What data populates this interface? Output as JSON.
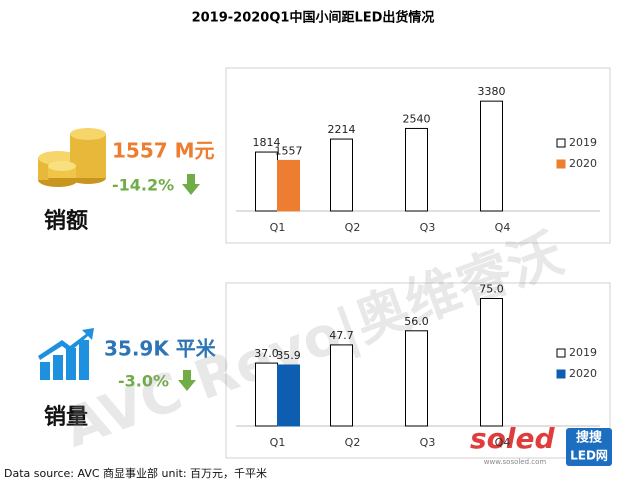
{
  "title": "2019-2020Q1中国小间距LED出货情况",
  "kpis": [
    {
      "value": "1557 M元",
      "change": "-14.2%",
      "label": "销额"
    },
    {
      "value": "35.9K 平米",
      "change": "-3.0%",
      "label": "销量"
    }
  ],
  "watermark": "AVC Revo|奥维睿沃",
  "logo": {
    "brand": "soled",
    "cn": "搜搜",
    "sub": "LED网",
    "url": "www.sosoled.com"
  },
  "footnote": "Data source: AVC 商显事业部 unit: 百万元，千平米",
  "chart_data": [
    {
      "type": "bar",
      "categories": [
        "Q1",
        "Q2",
        "Q3",
        "Q4"
      ],
      "ylim": [
        0,
        4000
      ],
      "series": [
        {
          "name": "2019",
          "color": "#ffffff",
          "values": [
            1814,
            2214,
            2540,
            3380
          ]
        },
        {
          "name": "2020",
          "color": "#ED7D31",
          "values": [
            1557,
            null,
            null,
            null
          ]
        }
      ]
    },
    {
      "type": "bar",
      "categories": [
        "Q1",
        "Q2",
        "Q3",
        "Q4"
      ],
      "ylim": [
        0,
        80
      ],
      "series": [
        {
          "name": "2019",
          "color": "#ffffff",
          "values": [
            37.0,
            47.7,
            56.0,
            75.0
          ],
          "value_labels": [
            "37.0",
            "47.7",
            "56.0",
            "75.0"
          ]
        },
        {
          "name": "2020",
          "color": "#0D5EB0",
          "values": [
            35.9,
            null,
            null,
            null
          ],
          "value_labels": [
            "35.9",
            null,
            null,
            null
          ]
        }
      ]
    }
  ]
}
